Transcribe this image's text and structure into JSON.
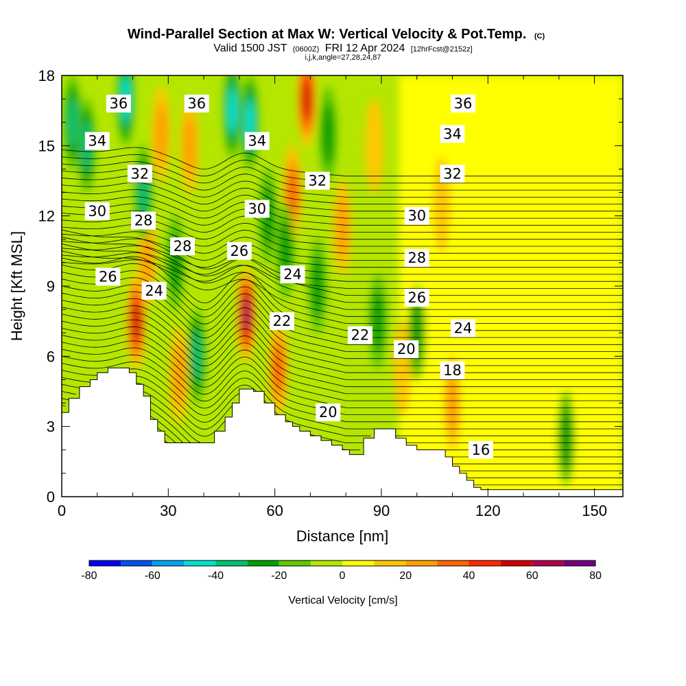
{
  "chart_data": {
    "type": "heatmap",
    "title": "Wind-Parallel Section at Max W: Vertical Velocity & Pot.Temp.",
    "copyright_mark": "(C)",
    "subtitle": {
      "valid_prefix": "Valid 1500 JST",
      "utc": "(0600Z)",
      "date": "FRI 12 Apr 2024",
      "forecast": "[12hrFcst@2152z]"
    },
    "grid_info": "i,j,k,angle=27,28,24,87",
    "xlabel": "Distance [nm]",
    "ylabel": "Height [Kft MSL]",
    "xlim": [
      0,
      158
    ],
    "ylim": [
      0,
      18
    ],
    "x_ticks": [
      "0",
      "30",
      "60",
      "90",
      "120",
      "150"
    ],
    "y_ticks": [
      "0",
      "3",
      "6",
      "9",
      "12",
      "15",
      "18"
    ],
    "colorbar": {
      "title": "Vertical Velocity [cm/s]",
      "range": [
        -80,
        80
      ],
      "tick_labels": [
        "-80",
        "-60",
        "-40",
        "-20",
        "0",
        "20",
        "40",
        "60",
        "80"
      ],
      "colors": [
        "#0000f0",
        "#0050f0",
        "#00a0f0",
        "#00e0d0",
        "#00c070",
        "#00a000",
        "#60c800",
        "#b4e600",
        "#ffff00",
        "#ffc800",
        "#ffa000",
        "#ff6400",
        "#ff2800",
        "#d00000",
        "#b00050",
        "#700080"
      ]
    },
    "terrain_profile": [
      [
        0,
        3.6
      ],
      [
        2,
        4.2
      ],
      [
        5,
        4.7
      ],
      [
        8,
        5.0
      ],
      [
        10,
        5.3
      ],
      [
        13,
        5.5
      ],
      [
        19,
        5.3
      ],
      [
        21,
        4.8
      ],
      [
        23,
        4.3
      ],
      [
        25,
        3.3
      ],
      [
        27,
        2.8
      ],
      [
        29,
        2.3
      ],
      [
        33,
        2.3
      ],
      [
        40,
        2.3
      ],
      [
        43,
        2.8
      ],
      [
        46,
        3.4
      ],
      [
        48,
        4.0
      ],
      [
        50,
        4.6
      ],
      [
        54,
        4.5
      ],
      [
        57,
        4.0
      ],
      [
        60,
        3.5
      ],
      [
        63,
        3.2
      ],
      [
        65,
        3.0
      ],
      [
        67,
        2.8
      ],
      [
        70,
        2.6
      ],
      [
        73,
        2.4
      ],
      [
        76,
        2.2
      ],
      [
        79,
        2.0
      ],
      [
        81,
        1.8
      ],
      [
        84,
        1.8
      ],
      [
        85,
        2.5
      ],
      [
        88,
        2.9
      ],
      [
        92,
        2.9
      ],
      [
        94,
        2.5
      ],
      [
        97,
        2.2
      ],
      [
        100,
        2.0
      ],
      [
        104,
        2.0
      ],
      [
        108,
        1.7
      ],
      [
        110,
        1.3
      ],
      [
        112,
        1.0
      ],
      [
        114,
        0.7
      ],
      [
        116,
        0.4
      ],
      [
        118,
        0.3
      ],
      [
        158,
        0.3
      ]
    ],
    "w_features": [
      {
        "x": 21,
        "y": 7.5,
        "w": 45
      },
      {
        "x": 24,
        "y": 10.2,
        "w": 22
      },
      {
        "x": 28,
        "y": 15.5,
        "w": 20
      },
      {
        "x": 36,
        "y": 15.0,
        "w": 18
      },
      {
        "x": 33,
        "y": 5.2,
        "w": 15
      },
      {
        "x": 52,
        "y": 7.8,
        "w": 55
      },
      {
        "x": 61,
        "y": 5.5,
        "w": 25
      },
      {
        "x": 65,
        "y": 13.0,
        "w": 25
      },
      {
        "x": 69,
        "y": 17.0,
        "w": 45
      },
      {
        "x": 79,
        "y": 11.5,
        "w": 18
      },
      {
        "x": 88,
        "y": 15.0,
        "w": 12
      },
      {
        "x": 96,
        "y": 5.5,
        "w": 14
      },
      {
        "x": 110,
        "y": 4.0,
        "w": 18
      },
      {
        "x": 107,
        "y": 12.5,
        "w": 12
      },
      {
        "x": 3,
        "y": 16.0,
        "w": -30
      },
      {
        "x": 7,
        "y": 15.0,
        "w": -25
      },
      {
        "x": 18,
        "y": 17.0,
        "w": -35
      },
      {
        "x": 23,
        "y": 13.0,
        "w": -25
      },
      {
        "x": 32,
        "y": 10.0,
        "w": -22
      },
      {
        "x": 38,
        "y": 6.0,
        "w": -28
      },
      {
        "x": 48,
        "y": 16.5,
        "w": -40
      },
      {
        "x": 53,
        "y": 16.0,
        "w": -40
      },
      {
        "x": 58,
        "y": 12.0,
        "w": -18
      },
      {
        "x": 63,
        "y": 10.5,
        "w": -20
      },
      {
        "x": 72,
        "y": 9.0,
        "w": -18
      },
      {
        "x": 75,
        "y": 15.5,
        "w": -18
      },
      {
        "x": 89,
        "y": 7.5,
        "w": -20
      },
      {
        "x": 100,
        "y": 7.0,
        "w": -15
      },
      {
        "x": 142,
        "y": 2.5,
        "w": -15
      }
    ],
    "theta_labels": [
      {
        "text": "36",
        "x": 16,
        "y": 16.8
      },
      {
        "text": "36",
        "x": 38,
        "y": 16.8
      },
      {
        "text": "36",
        "x": 113,
        "y": 16.8
      },
      {
        "text": "34",
        "x": 10,
        "y": 15.2
      },
      {
        "text": "34",
        "x": 55,
        "y": 15.2
      },
      {
        "text": "34",
        "x": 110,
        "y": 15.5
      },
      {
        "text": "32",
        "x": 22,
        "y": 13.8
      },
      {
        "text": "32",
        "x": 72,
        "y": 13.5
      },
      {
        "text": "32",
        "x": 110,
        "y": 13.8
      },
      {
        "text": "30",
        "x": 10,
        "y": 12.2
      },
      {
        "text": "30",
        "x": 55,
        "y": 12.3
      },
      {
        "text": "30",
        "x": 100,
        "y": 12.0
      },
      {
        "text": "28",
        "x": 23,
        "y": 11.8
      },
      {
        "text": "28",
        "x": 34,
        "y": 10.7
      },
      {
        "text": "28",
        "x": 100,
        "y": 10.2
      },
      {
        "text": "26",
        "x": 13,
        "y": 9.4
      },
      {
        "text": "26",
        "x": 50,
        "y": 10.5
      },
      {
        "text": "26",
        "x": 100,
        "y": 8.5
      },
      {
        "text": "24",
        "x": 26,
        "y": 8.8
      },
      {
        "text": "24",
        "x": 65,
        "y": 9.5
      },
      {
        "text": "24",
        "x": 113,
        "y": 7.2
      },
      {
        "text": "22",
        "x": 62,
        "y": 7.5
      },
      {
        "text": "22",
        "x": 84,
        "y": 6.9
      },
      {
        "text": "20",
        "x": 97,
        "y": 6.3
      },
      {
        "text": "20",
        "x": 75,
        "y": 3.6
      },
      {
        "text": "18",
        "x": 110,
        "y": 5.4
      },
      {
        "text": "16",
        "x": 118,
        "y": 2.0
      }
    ]
  }
}
